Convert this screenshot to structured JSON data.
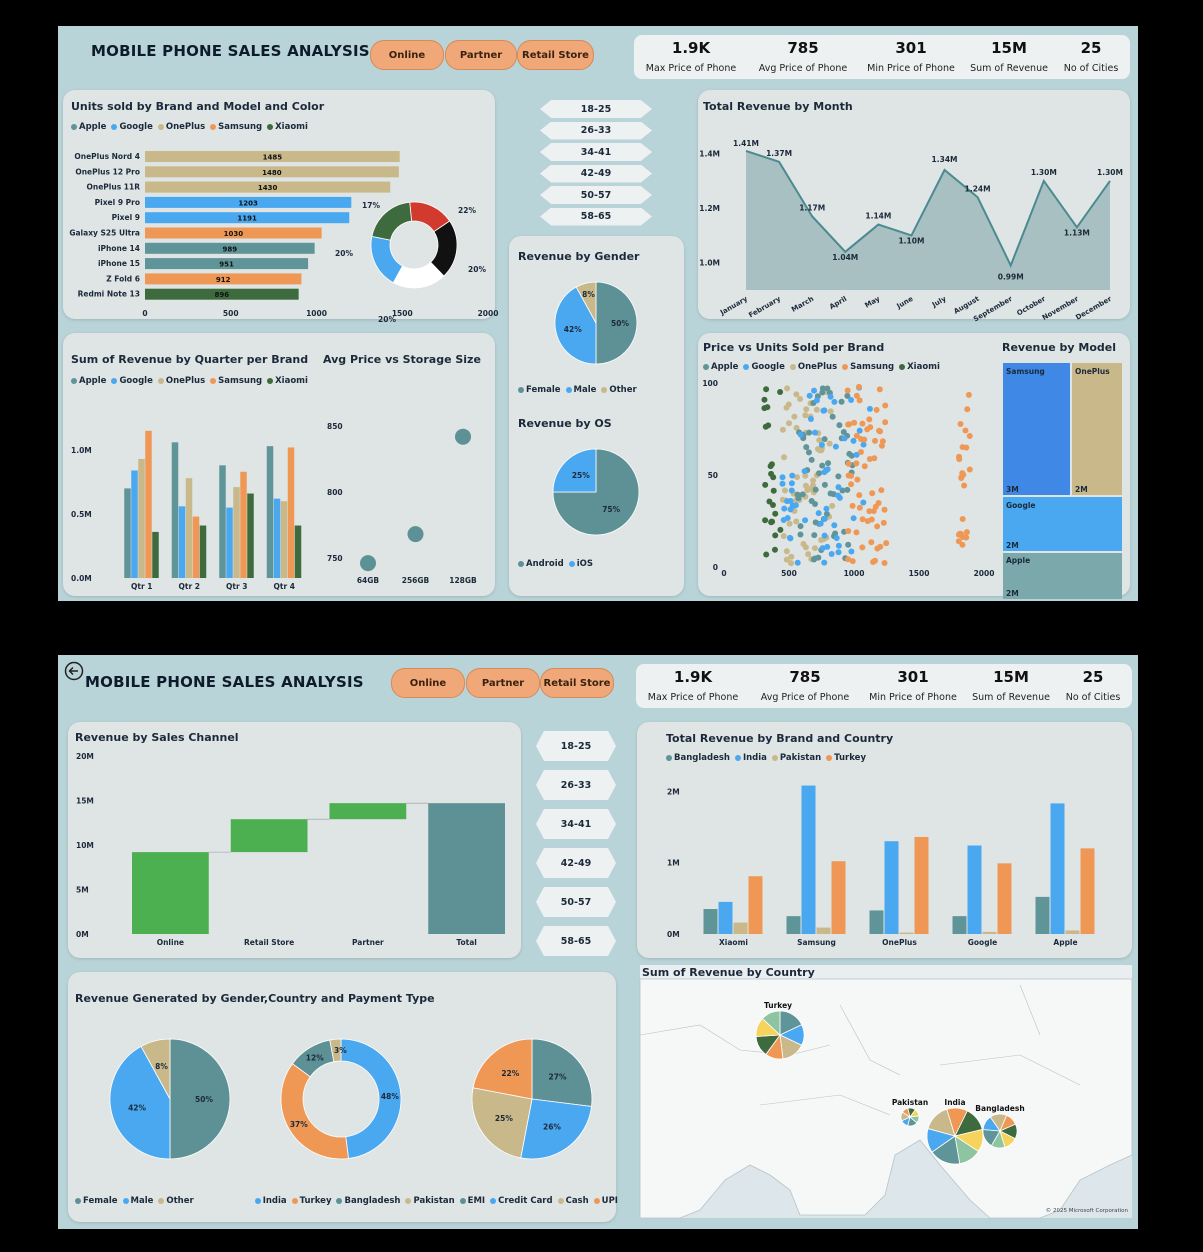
{
  "colors": {
    "Apple": "#5f9499",
    "Google": "#4aa8f0",
    "OnePlus": "#c9b88a",
    "Samsung": "#ef9856",
    "Xiaomi": "#3e6b3e",
    "green": "#4caf50",
    "teal": "#5e9196"
  },
  "dashboard1": {
    "title": "MOBILE PHONE SALES ANALYSIS",
    "channels": [
      "Online",
      "Partner",
      "Retail Store"
    ],
    "kpis": [
      {
        "value": "1.9K",
        "label": "Max Price of Phone"
      },
      {
        "value": "785",
        "label": "Avg Price of Phone"
      },
      {
        "value": "301",
        "label": "Min Price of Phone"
      },
      {
        "value": "15M",
        "label": "Sum of Revenue"
      },
      {
        "value": "25",
        "label": "No of Cities"
      }
    ],
    "ages": [
      "18-25",
      "26-33",
      "34-41",
      "42-49",
      "50-57",
      "58-65"
    ]
  },
  "dashboard2": {
    "title": "MOBILE PHONE SALES ANALYSIS",
    "back_icon": "back-arrow-icon",
    "channels": [
      "Online",
      "Partner",
      "Retail Store"
    ],
    "kpis": [
      {
        "value": "1.9K",
        "label": "Max Price of Phone"
      },
      {
        "value": "785",
        "label": "Avg Price of Phone"
      },
      {
        "value": "301",
        "label": "Min Price of Phone"
      },
      {
        "value": "15M",
        "label": "Sum of Revenue"
      },
      {
        "value": "25",
        "label": "No of Cities"
      }
    ],
    "ages": [
      "18-25",
      "26-33",
      "34-41",
      "42-49",
      "50-57",
      "58-65"
    ],
    "map": {
      "title": "Sum of Revenue by Country",
      "labels": [
        "Turkey",
        "Pakistan",
        "India",
        "Bangladesh"
      ],
      "footer": "© 2025 Microsoft Corporation"
    }
  },
  "chart_data": [
    {
      "id": "units",
      "type": "bar",
      "orientation": "horizontal",
      "title": "Units sold by Brand and Model and Color",
      "legend": [
        "Apple",
        "Google",
        "OnePlus",
        "Samsung",
        "Xiaomi"
      ],
      "categories": [
        "OnePlus Nord 4",
        "OnePlus 12 Pro",
        "OnePlus 11R",
        "Pixel 9 Pro",
        "Pixel 9",
        "Galaxy S25 Ultra",
        "iPhone 14",
        "iPhone 15",
        "Z Fold 6",
        "Redmi Note 13"
      ],
      "values": [
        1485,
        1480,
        1430,
        1203,
        1191,
        1030,
        989,
        951,
        912,
        896
      ],
      "brands": [
        "OnePlus",
        "OnePlus",
        "OnePlus",
        "Google",
        "Google",
        "Samsung",
        "Apple",
        "Apple",
        "Samsung",
        "Xiaomi"
      ],
      "xticks": [
        0,
        500,
        1000,
        1500,
        2000
      ],
      "xlim": [
        0,
        2000
      ]
    },
    {
      "id": "color_donut",
      "type": "pie",
      "donut": true,
      "labels": [
        "17%",
        "22%",
        "20%",
        "20%",
        "20%"
      ],
      "values": [
        17,
        22,
        20,
        20,
        20
      ],
      "colors": [
        "#d23a2e",
        "#111111",
        "#ffffff",
        "#4aa8f0",
        "#3e6b3e"
      ]
    },
    {
      "id": "revmonth",
      "type": "area",
      "title": "Total Revenue by Month",
      "categories": [
        "January",
        "February",
        "March",
        "April",
        "May",
        "June",
        "July",
        "August",
        "September",
        "October",
        "November",
        "December"
      ],
      "values": [
        1.41,
        1.37,
        1.17,
        1.04,
        1.14,
        1.1,
        1.34,
        1.24,
        0.99,
        1.3,
        1.13,
        1.3
      ],
      "labels": [
        "1.41M",
        "1.37M",
        "1.17M",
        "1.04M",
        "1.14M",
        "1.10M",
        "1.34M",
        "1.24M",
        "0.99M",
        "1.30M",
        "1.13M",
        "1.30M"
      ],
      "yticks": [
        "1.0M",
        "1.2M",
        "1.4M"
      ],
      "ylim": [
        0.9,
        1.45
      ]
    },
    {
      "id": "gender",
      "type": "pie",
      "title": "Revenue by Gender",
      "legend": [
        "Female",
        "Male",
        "Other"
      ],
      "values": [
        50,
        42,
        8
      ],
      "labels": [
        "50%",
        "42%",
        "8%"
      ],
      "colors": [
        "#5e9196",
        "#4aa8f0",
        "#c9b88a"
      ]
    },
    {
      "id": "os",
      "type": "pie",
      "title": "Revenue by OS",
      "legend": [
        "Android",
        "iOS"
      ],
      "values": [
        75,
        25
      ],
      "labels": [
        "75%",
        "25%"
      ],
      "colors": [
        "#5e9196",
        "#4aa8f0"
      ]
    },
    {
      "id": "quarter",
      "type": "bar",
      "title": "Sum of Revenue by Quarter per Brand",
      "legend": [
        "Apple",
        "Google",
        "OnePlus",
        "Samsung",
        "Xiaomi"
      ],
      "categories": [
        "Qtr 1",
        "Qtr 2",
        "Qtr 3",
        "Qtr 4"
      ],
      "series": [
        {
          "name": "Apple",
          "values": [
            0.7,
            1.06,
            0.88,
            1.03
          ]
        },
        {
          "name": "Google",
          "values": [
            0.84,
            0.56,
            0.55,
            0.62
          ]
        },
        {
          "name": "OnePlus",
          "values": [
            0.93,
            0.78,
            0.71,
            0.6
          ]
        },
        {
          "name": "Samsung",
          "values": [
            1.15,
            0.48,
            0.83,
            1.02
          ]
        },
        {
          "name": "Xiaomi",
          "values": [
            0.36,
            0.41,
            0.66,
            0.41
          ]
        }
      ],
      "yticks": [
        "0.0M",
        "0.5M",
        "1.0M"
      ],
      "ylim": [
        0,
        1.25
      ]
    },
    {
      "id": "storage",
      "type": "scatter",
      "title": "Avg Price vs Storage Size",
      "categories": [
        "64GB",
        "256GB",
        "128GB"
      ],
      "values": [
        746,
        768,
        842
      ],
      "yticks": [
        750,
        800,
        850
      ],
      "ylim": [
        740,
        860
      ]
    },
    {
      "id": "pricevunits",
      "type": "scatter",
      "title": "Price vs Units Sold per Brand",
      "legend": [
        "Apple",
        "Google",
        "OnePlus",
        "Samsung",
        "Xiaomi"
      ],
      "xticks": [
        0,
        500,
        1000,
        1500,
        2000
      ],
      "yticks": [
        0,
        50,
        100
      ],
      "xlim": [
        0,
        2000
      ],
      "ylim": [
        0,
        100
      ],
      "clusters": [
        {
          "brand": "Xiaomi",
          "xc": [
            300,
            440
          ]
        },
        {
          "brand": "OnePlus",
          "xc": [
            450,
            850
          ]
        },
        {
          "brand": "Apple",
          "xc": [
            550,
            1000
          ]
        },
        {
          "brand": "Google",
          "xc": [
            450,
            1150
          ]
        },
        {
          "brand": "Samsung",
          "xc": [
            950,
            1250
          ]
        },
        {
          "brand": "Samsung",
          "xc": [
            1800,
            1900
          ]
        }
      ]
    },
    {
      "id": "treemap",
      "type": "table",
      "title": "Revenue by Model",
      "items": [
        {
          "name": "Samsung",
          "value": "3M"
        },
        {
          "name": "OnePlus",
          "value": "2M"
        },
        {
          "name": "Google",
          "value": "2M"
        },
        {
          "name": "Apple",
          "value": "2M"
        }
      ]
    },
    {
      "id": "waterfall",
      "type": "bar",
      "title": "Revenue by Sales Channel",
      "categories": [
        "Online",
        "Retail Store",
        "Partner",
        "Total"
      ],
      "values": [
        9.2,
        3.7,
        1.8,
        14.7
      ],
      "yticks": [
        "0M",
        "5M",
        "10M",
        "15M",
        "20M"
      ],
      "ylim": [
        0,
        20
      ]
    },
    {
      "id": "brandcountry",
      "type": "bar",
      "title": "Total Revenue by Brand and Country",
      "legend": [
        "Bangladesh",
        "India",
        "Pakistan",
        "Turkey"
      ],
      "categories": [
        "Xiaomi",
        "Samsung",
        "OnePlus",
        "Google",
        "Apple"
      ],
      "series": [
        {
          "name": "Bangladesh",
          "values": [
            0.35,
            0.25,
            0.33,
            0.25,
            0.52
          ]
        },
        {
          "name": "India",
          "values": [
            0.45,
            2.08,
            1.3,
            1.24,
            1.83
          ]
        },
        {
          "name": "Pakistan",
          "values": [
            0.16,
            0.09,
            0.02,
            0.03,
            0.05
          ]
        },
        {
          "name": "Turkey",
          "values": [
            0.81,
            1.02,
            1.36,
            0.99,
            1.2
          ]
        }
      ],
      "yticks": [
        "0M",
        "1M",
        "2M"
      ],
      "ylim": [
        0,
        2.2
      ]
    },
    {
      "id": "gcp_gender",
      "type": "pie",
      "title": "Revenue Generated by Gender,Country and Payment Type",
      "values": [
        50,
        42,
        8
      ],
      "labels": [
        "50%",
        "42%",
        "8%"
      ],
      "colors": [
        "#5e9196",
        "#4aa8f0",
        "#c9b88a"
      ]
    },
    {
      "id": "gcp_country",
      "type": "pie",
      "donut": true,
      "values": [
        48,
        37,
        12,
        3
      ],
      "labels": [
        "48%",
        "37%",
        "12%",
        "3%"
      ],
      "colors": [
        "#4aa8f0",
        "#ef9856",
        "#5e9196",
        "#c9b88a"
      ]
    },
    {
      "id": "gcp_payment",
      "type": "pie",
      "values": [
        27,
        26,
        25,
        22
      ],
      "labels": [
        "27%",
        "26%",
        "25%",
        "22%"
      ],
      "colors": [
        "#5e9196",
        "#4aa8f0",
        "#c9b88a",
        "#ef9856"
      ]
    },
    {
      "id": "gcp_legend",
      "type": "table",
      "legend": [
        "Female",
        "Male",
        "Other",
        "India",
        "Turkey",
        "Bangladesh",
        "Pakistan",
        "EMI",
        "Credit Card",
        "Cash",
        "UPI"
      ]
    }
  ]
}
